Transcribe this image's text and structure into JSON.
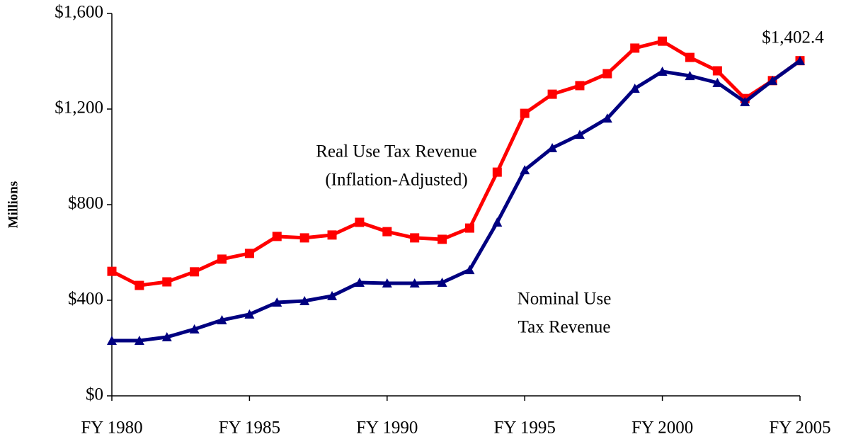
{
  "chart_data": {
    "type": "line",
    "y_label": "Millions",
    "x": [
      1980,
      1981,
      1982,
      1983,
      1984,
      1985,
      1986,
      1987,
      1988,
      1989,
      1990,
      1991,
      1992,
      1993,
      1994,
      1995,
      1996,
      1997,
      1998,
      1999,
      2000,
      2001,
      2002,
      2003,
      2004,
      2005
    ],
    "xlim": [
      1980,
      2005
    ],
    "xticks": [
      {
        "value": 1980,
        "label": "FY 1980"
      },
      {
        "value": 1985,
        "label": "FY 1985"
      },
      {
        "value": 1990,
        "label": "FY 1990"
      },
      {
        "value": 1995,
        "label": "FY 1995"
      },
      {
        "value": 2000,
        "label": "FY 2000"
      },
      {
        "value": 2005,
        "label": "FY 2005"
      }
    ],
    "ylim": [
      0,
      1600
    ],
    "yticks": [
      {
        "value": 0,
        "label": "$0"
      },
      {
        "value": 400,
        "label": "$400"
      },
      {
        "value": 800,
        "label": "$800"
      },
      {
        "value": 1200,
        "label": "$1,200"
      },
      {
        "value": 1600,
        "label": "$1,600"
      }
    ],
    "grid": false,
    "series": [
      {
        "label_lines": [
          "Real Use Tax Revenue",
          "(Inflation-Adjusted)"
        ],
        "color": "#ff0000",
        "marker": "square",
        "values": [
          521,
          462,
          477,
          519,
          572,
          596,
          667,
          661,
          673,
          726,
          687,
          661,
          655,
          702,
          936,
          1182,
          1262,
          1298,
          1348,
          1455,
          1484,
          1416,
          1360,
          1244,
          1319,
          1402.4
        ],
        "value_labels": [
          null,
          null,
          null,
          null,
          null,
          null,
          null,
          null,
          null,
          null,
          null,
          null,
          null,
          null,
          null,
          null,
          null,
          null,
          null,
          null,
          null,
          null,
          null,
          null,
          null,
          "$1,402.4"
        ]
      },
      {
        "label_lines": [
          "Nominal Use",
          "Tax Revenue"
        ],
        "color": "#000080",
        "marker": "triangle",
        "values": [
          231,
          231,
          246,
          279,
          317,
          341,
          391,
          397,
          418,
          474,
          471,
          471,
          474,
          527,
          726,
          945,
          1037,
          1093,
          1161,
          1286,
          1357,
          1339,
          1310,
          1230,
          1319,
          1402
        ]
      }
    ]
  }
}
